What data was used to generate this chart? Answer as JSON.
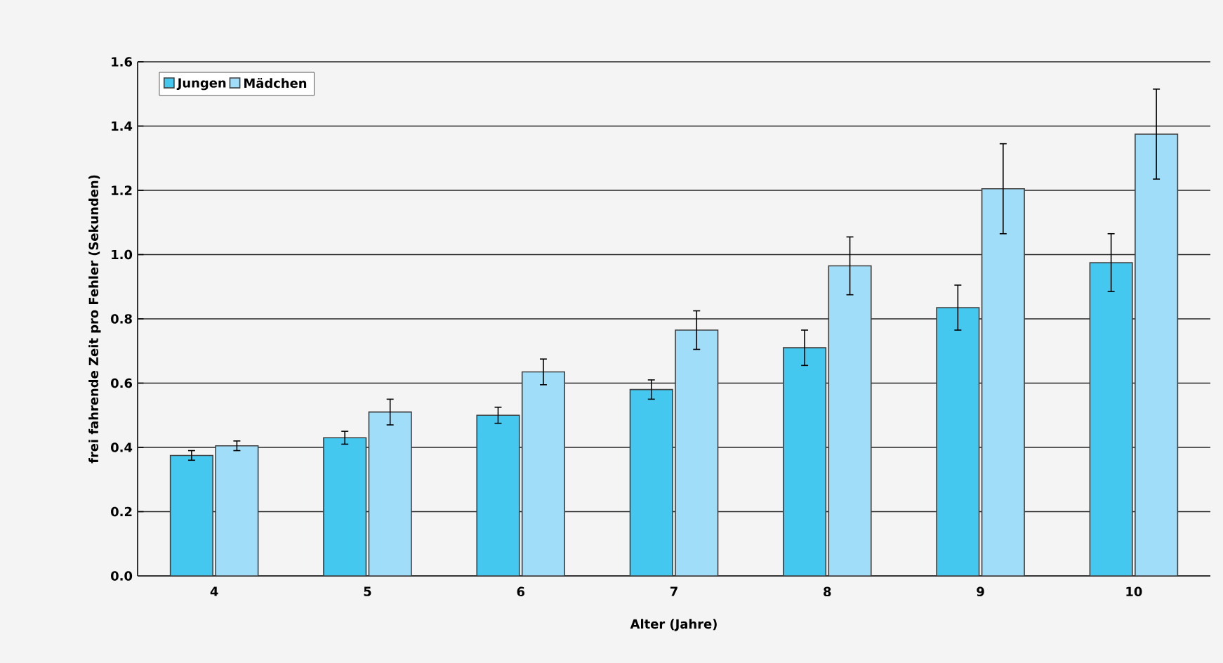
{
  "chart_data": {
    "type": "bar",
    "xlabel": "Alter (Jahre)",
    "ylabel": "frei fahrende Zeit pro Fehler (Sekunden)",
    "categories": [
      "4",
      "5",
      "6",
      "7",
      "8",
      "9",
      "10"
    ],
    "series": [
      {
        "name": "Jungen",
        "color": "#45c8f0",
        "values": [
          0.375,
          0.43,
          0.5,
          0.58,
          0.71,
          0.835,
          0.975
        ],
        "errors": [
          0.015,
          0.02,
          0.025,
          0.03,
          0.055,
          0.07,
          0.09
        ]
      },
      {
        "name": "Mädchen",
        "color": "#a0ddf8",
        "values": [
          0.405,
          0.51,
          0.635,
          0.765,
          0.965,
          1.205,
          1.375
        ],
        "errors": [
          0.015,
          0.04,
          0.04,
          0.06,
          0.09,
          0.14,
          0.14
        ]
      }
    ],
    "ylim": [
      0,
      1.6
    ],
    "yticks": [
      {
        "value": 0,
        "label": "0.0"
      },
      {
        "value": 0.2,
        "label": "0.2"
      },
      {
        "value": 0.4,
        "label": "0.4"
      },
      {
        "value": 0.6,
        "label": "0.6"
      },
      {
        "value": 0.8,
        "label": "0.8"
      },
      {
        "value": 1.0,
        "label": "1.0"
      },
      {
        "value": 1.2,
        "label": "1.2"
      },
      {
        "value": 1.4,
        "label": "1.4"
      },
      {
        "value": 1.6,
        "label": "1.6"
      }
    ],
    "grid": "y",
    "legend": "top left"
  }
}
